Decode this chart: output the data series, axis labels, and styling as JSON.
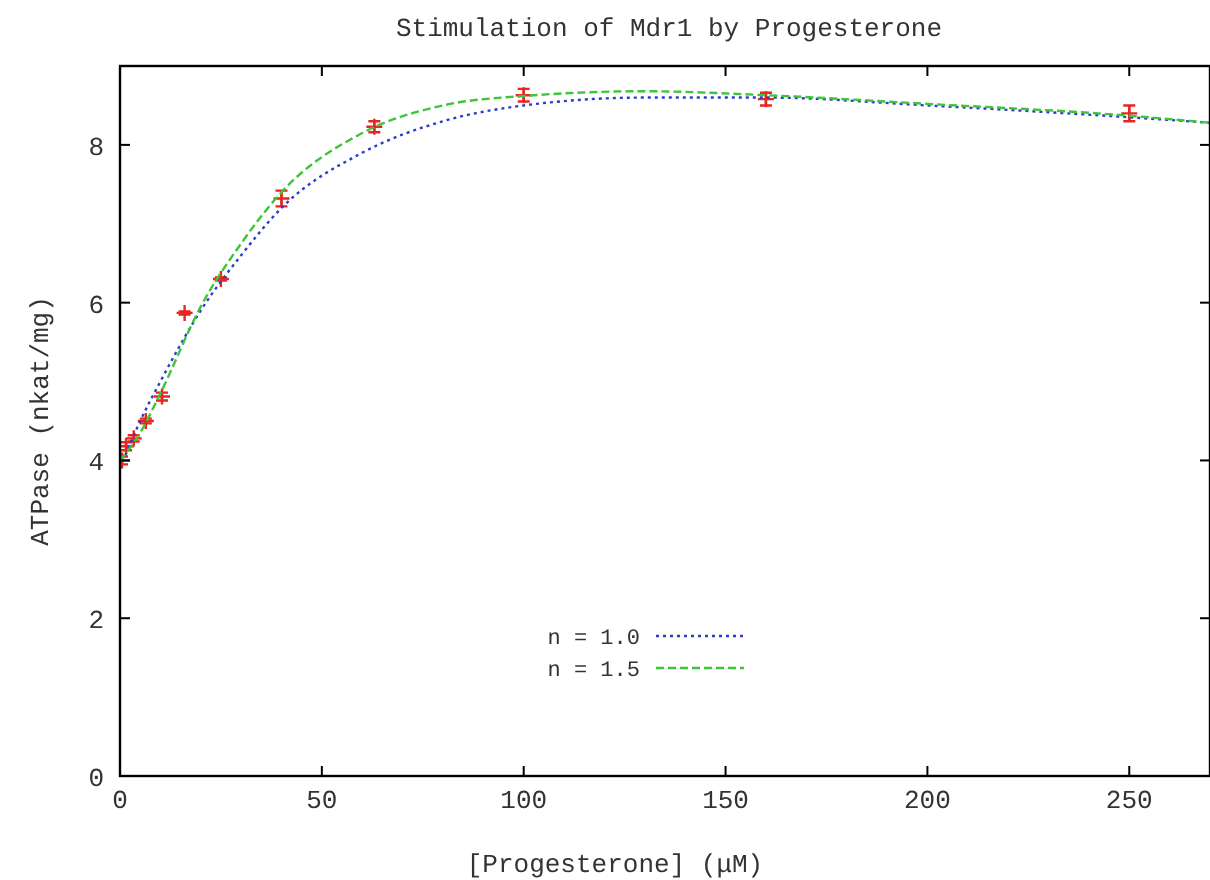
{
  "chart_data": {
    "type": "scatter",
    "title": "Stimulation of Mdr1 by Progesterone",
    "xlabel": "[Progesterone] (μM)",
    "ylabel": "ATPase (nkat/mg)",
    "xlim": [
      0,
      270
    ],
    "ylim": [
      0,
      9
    ],
    "xticks": [
      0,
      50,
      100,
      150,
      200,
      250
    ],
    "yticks": [
      0,
      2,
      4,
      6,
      8
    ],
    "grid": false,
    "legend": "bottom",
    "marker": "cross",
    "series": [
      {
        "color": "#e8251f",
        "x": [
          0.5,
          1.5,
          3.4,
          6.4,
          10.4,
          16,
          25,
          40,
          63,
          100,
          160,
          250
        ],
        "values": [
          4.0,
          4.18,
          4.28,
          4.5,
          4.81,
          5.87,
          6.3,
          7.32,
          8.23,
          8.63,
          8.58,
          8.4
        ],
        "errors": [
          0.05,
          0.05,
          0.04,
          0.03,
          0.05,
          0.02,
          0.02,
          0.1,
          0.07,
          0.08,
          0.08,
          0.1
        ]
      },
      {
        "type": "line",
        "name": "n = 1.0",
        "color": "#2b3fc4",
        "line_style": "dotted",
        "marker": "none",
        "x": [
          0,
          5,
          10,
          20,
          30,
          40,
          60,
          80,
          100,
          130,
          160,
          200,
          250,
          270
        ],
        "values": [
          3.9,
          4.5,
          5.0,
          5.9,
          6.6,
          7.2,
          7.9,
          8.3,
          8.5,
          8.6,
          8.6,
          8.5,
          8.35,
          8.28
        ]
      },
      {
        "type": "line",
        "name": "n = 1.5",
        "color": "#3fc43a",
        "line_style": "dashed",
        "marker": "none",
        "x": [
          0,
          5,
          10,
          20,
          30,
          40,
          60,
          80,
          100,
          130,
          160,
          200,
          250,
          270
        ],
        "values": [
          4.0,
          4.35,
          4.85,
          5.95,
          6.75,
          7.4,
          8.15,
          8.5,
          8.62,
          8.68,
          8.63,
          8.52,
          8.37,
          8.28
        ]
      }
    ]
  }
}
